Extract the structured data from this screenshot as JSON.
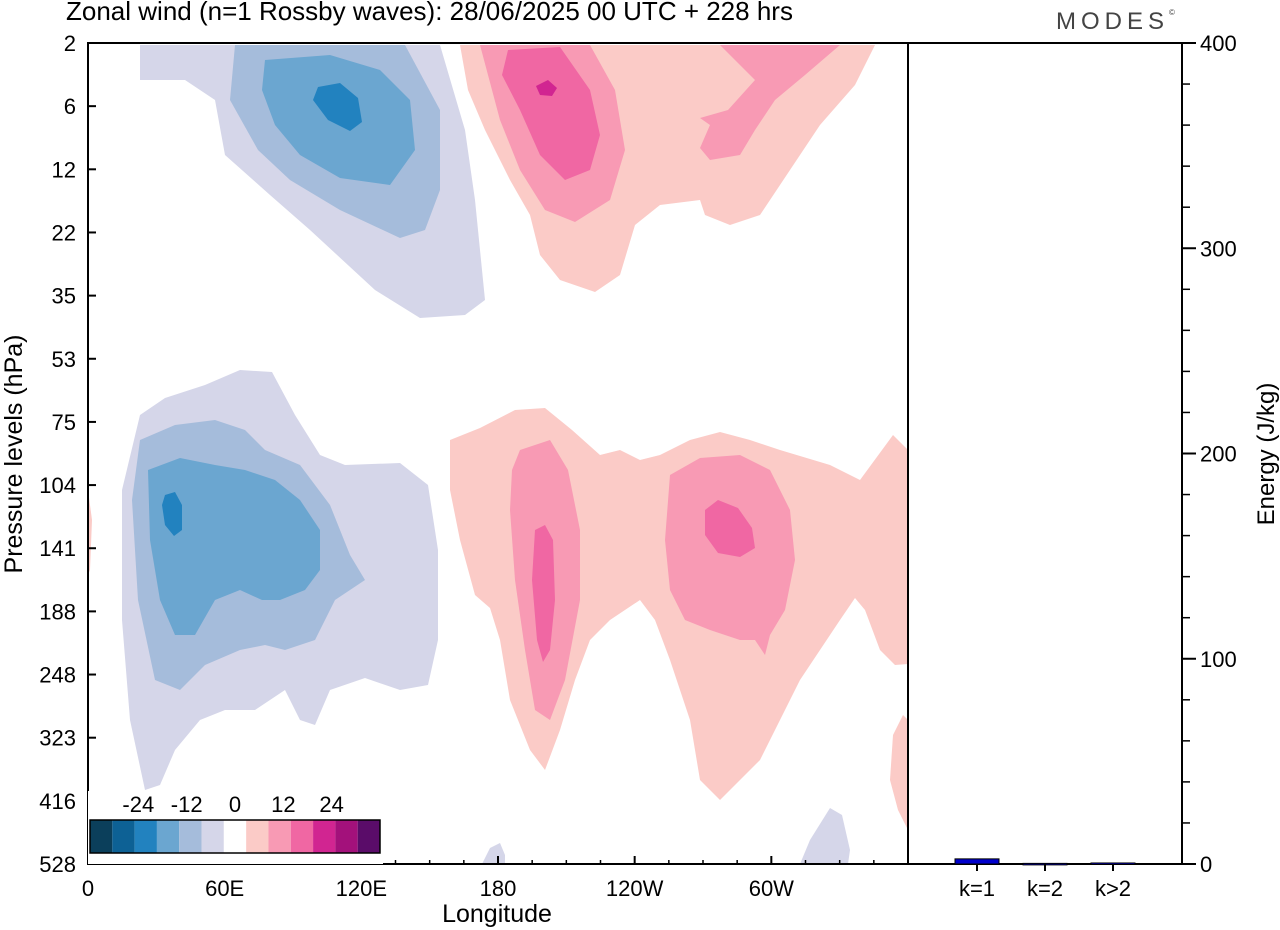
{
  "header": {
    "title": "Zonal wind (n=1 Rossby waves):  28/06/2025  00 UTC  + 228 hrs",
    "brand": "MODES"
  },
  "chart_data": [
    {
      "type": "heatmap",
      "title": "Zonal wind (n=1 Rossby waves):  28/06/2025  00 UTC  + 228 hrs",
      "xlabel": "Longitude",
      "ylabel": "Pressure levels (hPa)",
      "x_ticks": [
        "0",
        "60E",
        "120E",
        "180",
        "120W",
        "60W"
      ],
      "x_tick_degrees": [
        0,
        60,
        120,
        180,
        240,
        300
      ],
      "xlim": [
        0,
        360
      ],
      "y_ticks": [
        2,
        6,
        12,
        22,
        35,
        53,
        75,
        104,
        141,
        188,
        248,
        323,
        416,
        528
      ],
      "y_axis": "pressure (non-linear, top = 2 hPa)",
      "contour_levels": [
        -30,
        -24,
        -18,
        -12,
        -6,
        -3,
        3,
        6,
        12,
        18,
        24,
        30
      ],
      "colorbar_labels": [
        "-24",
        "-12",
        "0",
        "12",
        "24"
      ],
      "colorbar_colors": [
        "#0b3f5b",
        "#0d6195",
        "#2282bf",
        "#6ba6d0",
        "#a5bcdb",
        "#d5d6e9",
        "#ffffff",
        "#fbcbc7",
        "#f89ab4",
        "#f067a3",
        "#d12591",
        "#a3117b",
        "#5a0c69"
      ],
      "features": [
        {
          "region": "upper stratosphere 30E-120E",
          "sign": "easterly",
          "min_value": -18,
          "core_pressure_hPa": 6
        },
        {
          "region": "upper stratosphere 170E-300E",
          "sign": "westerly",
          "max_value": 24,
          "core_pressure_hPa": 5
        },
        {
          "region": "upper troposphere 20E-120E",
          "sign": "easterly",
          "min_value": -18,
          "core_pressure_hPa": 110
        },
        {
          "region": "troposphere 180-230E",
          "sign": "westerly",
          "max_value": 18,
          "core_pressure_hPa": 150
        },
        {
          "region": "troposphere 260-320E",
          "sign": "westerly",
          "max_value": 18,
          "core_pressure_hPa": 120
        }
      ]
    },
    {
      "type": "bar",
      "ylabel": "Energy (J/kg)",
      "ylim": [
        0,
        400
      ],
      "y_ticks": [
        0,
        100,
        200,
        300,
        400
      ],
      "categories": [
        "k=1",
        "k=2",
        "k>2"
      ],
      "values": [
        2.5,
        0.3,
        0.5
      ],
      "bar_color": "#0000cc"
    }
  ]
}
